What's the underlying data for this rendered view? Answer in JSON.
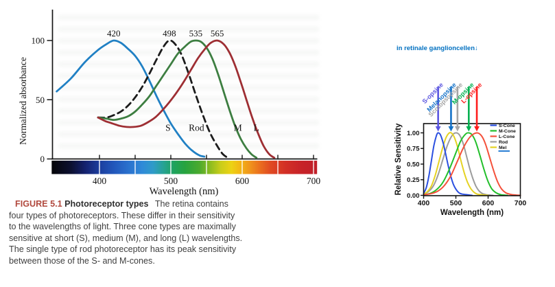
{
  "left_figure": {
    "caption": {
      "label": "FIGURE 5.1",
      "label_color": "#b1493e",
      "title": "Photoreceptor types",
      "body": "The retina contains four types of photoreceptors. These differ in their sensitivity to the wavelengths of light. Three cone types are maximally sensitive at short (S), medium (M), and long (L) wavelengths. The single type of rod photoreceptor has its peak sensitivity between those of the S- and M-cones."
    }
  },
  "right_figure": {
    "note": "in retinale ganglioncellen↓",
    "note_color": "#0070c0"
  },
  "chart_data": [
    {
      "type": "line",
      "title": "",
      "xlabel": "Wavelength (nm)",
      "ylabel": "Normalized absorbance",
      "xlim": [
        333,
        705
      ],
      "ylim": [
        0,
        105
      ],
      "xticks": [
        "400",
        "500",
        "600",
        "700"
      ],
      "xtick_nm": [
        400,
        500,
        600,
        700
      ],
      "yticks": [
        "0",
        "50",
        "100"
      ],
      "ytick_vals": [
        0,
        50,
        100
      ],
      "grid": false,
      "series": [
        {
          "name": "S",
          "color": "#2080c4",
          "dash": "none",
          "peak_nm": 420,
          "peak_label": "420",
          "points": [
            [
              340,
              57
            ],
            [
              360,
              68
            ],
            [
              380,
              82
            ],
            [
              398,
              92
            ],
            [
              410,
              97
            ],
            [
              420,
              100
            ],
            [
              430,
              98
            ],
            [
              440,
              93
            ],
            [
              450,
              87
            ],
            [
              460,
              78
            ],
            [
              470,
              66
            ],
            [
              480,
              53
            ],
            [
              490,
              41
            ],
            [
              500,
              30
            ],
            [
              510,
              21
            ],
            [
              520,
              13
            ],
            [
              530,
              7
            ],
            [
              540,
              3
            ],
            [
              547,
              2
            ]
          ]
        },
        {
          "name": "Rod",
          "color": "#1c1c1c",
          "dash": "9 6",
          "peak_nm": 498,
          "peak_label": "498",
          "points": [
            [
              398,
              35
            ],
            [
              410,
              35
            ],
            [
              420,
              37
            ],
            [
              430,
              40
            ],
            [
              440,
              45
            ],
            [
              450,
              52
            ],
            [
              460,
              61
            ],
            [
              470,
              72
            ],
            [
              480,
              84
            ],
            [
              490,
              95
            ],
            [
              498,
              100
            ],
            [
              506,
              97
            ],
            [
              515,
              88
            ],
            [
              525,
              72
            ],
            [
              535,
              54
            ],
            [
              545,
              37
            ],
            [
              555,
              22
            ],
            [
              565,
              11
            ],
            [
              573,
              4
            ],
            [
              580,
              1
            ]
          ]
        },
        {
          "name": "M",
          "color": "#3d7e41",
          "dash": "none",
          "peak_nm": 535,
          "peak_label": "535",
          "points": [
            [
              398,
              35
            ],
            [
              410,
              34
            ],
            [
              420,
              33
            ],
            [
              430,
              34
            ],
            [
              440,
              36
            ],
            [
              450,
              40
            ],
            [
              460,
              46
            ],
            [
              470,
              53
            ],
            [
              480,
              62
            ],
            [
              490,
              71
            ],
            [
              500,
              80
            ],
            [
              510,
              89
            ],
            [
              520,
              95
            ],
            [
              528,
              99
            ],
            [
              535,
              100
            ],
            [
              542,
              99
            ],
            [
              550,
              94
            ],
            [
              558,
              85
            ],
            [
              566,
              72
            ],
            [
              575,
              55
            ],
            [
              583,
              40
            ],
            [
              590,
              28
            ],
            [
              598,
              17
            ],
            [
              606,
              9
            ],
            [
              613,
              4
            ],
            [
              620,
              1
            ]
          ]
        },
        {
          "name": "L",
          "color": "#9e2e33",
          "dash": "none",
          "peak_nm": 565,
          "peak_label": "565",
          "points": [
            [
              398,
              35
            ],
            [
              408,
              32
            ],
            [
              418,
              30
            ],
            [
              428,
              28
            ],
            [
              438,
              27
            ],
            [
              448,
              27
            ],
            [
              458,
              28
            ],
            [
              468,
              31
            ],
            [
              478,
              35
            ],
            [
              488,
              41
            ],
            [
              498,
              48
            ],
            [
              508,
              56
            ],
            [
              518,
              65
            ],
            [
              528,
              75
            ],
            [
              538,
              85
            ],
            [
              548,
              93
            ],
            [
              556,
              98
            ],
            [
              565,
              100
            ],
            [
              574,
              97
            ],
            [
              582,
              90
            ],
            [
              590,
              79
            ],
            [
              598,
              65
            ],
            [
              606,
              50
            ],
            [
              614,
              35
            ],
            [
              622,
              22
            ],
            [
              630,
              11
            ],
            [
              638,
              4
            ],
            [
              645,
              1
            ]
          ]
        }
      ],
      "curve_labels": [
        {
          "text": "S",
          "nm": 496,
          "value": 26
        },
        {
          "text": "Rod",
          "nm": 536,
          "value": 26
        },
        {
          "text": "M",
          "nm": 594,
          "value": 26
        },
        {
          "text": "L",
          "nm": 620,
          "value": 26
        }
      ],
      "spectrum_bar": {
        "start_nm": 333,
        "end_nm": 705,
        "separator_nm": [
          400,
          450,
          500,
          550,
          600,
          650,
          700
        ],
        "stops": [
          {
            "nm": 333,
            "color": "#050508"
          },
          {
            "nm": 360,
            "color": "#0c1030"
          },
          {
            "nm": 380,
            "color": "#14216e"
          },
          {
            "nm": 400,
            "color": "#1c3e9e"
          },
          {
            "nm": 420,
            "color": "#2257bb"
          },
          {
            "nm": 440,
            "color": "#2a70cd"
          },
          {
            "nm": 460,
            "color": "#2f8ad8"
          },
          {
            "nm": 475,
            "color": "#2f9bc8"
          },
          {
            "nm": 490,
            "color": "#27a392"
          },
          {
            "nm": 505,
            "color": "#1fa35c"
          },
          {
            "nm": 520,
            "color": "#27a33e"
          },
          {
            "nm": 540,
            "color": "#4aaa2e"
          },
          {
            "nm": 555,
            "color": "#8cbc20"
          },
          {
            "nm": 570,
            "color": "#c9cd1a"
          },
          {
            "nm": 585,
            "color": "#ecd214"
          },
          {
            "nm": 595,
            "color": "#f2bc14"
          },
          {
            "nm": 610,
            "color": "#f0961c"
          },
          {
            "nm": 625,
            "color": "#ea6e1e"
          },
          {
            "nm": 640,
            "color": "#e04a22"
          },
          {
            "nm": 660,
            "color": "#d33026"
          },
          {
            "nm": 680,
            "color": "#c82428"
          },
          {
            "nm": 705,
            "color": "#c01f2a"
          }
        ]
      }
    },
    {
      "type": "line",
      "title": "",
      "xlabel": "Wavelength (nm)",
      "ylabel": "Relative Sensitivity",
      "xlim": [
        400,
        700
      ],
      "ylim": [
        0,
        1.15
      ],
      "xticks": [
        "400",
        "500",
        "600",
        "700"
      ],
      "xtick_nm": [
        400,
        500,
        600,
        700
      ],
      "yticks": [
        "0.00",
        "0.25",
        "0.50",
        "0.75",
        "1.00"
      ],
      "ytick_vals": [
        0,
        0.25,
        0.5,
        0.75,
        1.0
      ],
      "grid": false,
      "legend_position": "upper right",
      "legend": [
        {
          "label": "S-Cone",
          "color": "#2a4fe0"
        },
        {
          "label": "M-Cone",
          "color": "#22bf2b"
        },
        {
          "label": "L-Cone",
          "color": "#f4503a"
        },
        {
          "label": "Rod",
          "color": "#9c9c9c"
        },
        {
          "label": "Mel",
          "color": "#e5d222",
          "underline_color": "#2a7fd4"
        }
      ],
      "series": [
        {
          "name": "Rod",
          "color": "#9c9c9c",
          "peak_nm": 505,
          "points": [
            [
              400,
              0.02
            ],
            [
              415,
              0.06
            ],
            [
              430,
              0.15
            ],
            [
              445,
              0.33
            ],
            [
              460,
              0.58
            ],
            [
              475,
              0.82
            ],
            [
              490,
              0.97
            ],
            [
              502,
              1.0
            ],
            [
              512,
              0.96
            ],
            [
              522,
              0.84
            ],
            [
              532,
              0.65
            ],
            [
              542,
              0.45
            ],
            [
              552,
              0.28
            ],
            [
              562,
              0.15
            ],
            [
              572,
              0.07
            ],
            [
              582,
              0.03
            ],
            [
              595,
              0.01
            ],
            [
              615,
              0.0
            ]
          ]
        },
        {
          "name": "Mel",
          "color": "#e5d222",
          "peak_nm": 485,
          "points": [
            [
              400,
              0.02
            ],
            [
              412,
              0.06
            ],
            [
              424,
              0.15
            ],
            [
              436,
              0.32
            ],
            [
              448,
              0.55
            ],
            [
              460,
              0.78
            ],
            [
              470,
              0.93
            ],
            [
              480,
              1.0
            ],
            [
              488,
              0.99
            ],
            [
              496,
              0.92
            ],
            [
              506,
              0.76
            ],
            [
              516,
              0.55
            ],
            [
              526,
              0.36
            ],
            [
              536,
              0.21
            ],
            [
              546,
              0.11
            ],
            [
              556,
              0.05
            ],
            [
              566,
              0.02
            ],
            [
              580,
              0.01
            ],
            [
              600,
              0.0
            ]
          ]
        },
        {
          "name": "S-Cone",
          "color": "#2a4fe0",
          "peak_nm": 445,
          "points": [
            [
              400,
              0.03
            ],
            [
              408,
              0.12
            ],
            [
              416,
              0.3
            ],
            [
              424,
              0.55
            ],
            [
              432,
              0.8
            ],
            [
              440,
              0.96
            ],
            [
              445,
              1.0
            ],
            [
              452,
              0.97
            ],
            [
              460,
              0.85
            ],
            [
              468,
              0.67
            ],
            [
              476,
              0.48
            ],
            [
              484,
              0.31
            ],
            [
              492,
              0.18
            ],
            [
              500,
              0.1
            ],
            [
              510,
              0.04
            ],
            [
              520,
              0.02
            ],
            [
              535,
              0.01
            ],
            [
              550,
              0.0
            ]
          ]
        },
        {
          "name": "M-Cone",
          "color": "#22bf2b",
          "peak_nm": 540,
          "points": [
            [
              400,
              0.01
            ],
            [
              420,
              0.03
            ],
            [
              440,
              0.09
            ],
            [
              460,
              0.21
            ],
            [
              480,
              0.42
            ],
            [
              500,
              0.68
            ],
            [
              515,
              0.87
            ],
            [
              530,
              0.98
            ],
            [
              540,
              1.0
            ],
            [
              550,
              0.97
            ],
            [
              562,
              0.85
            ],
            [
              575,
              0.63
            ],
            [
              588,
              0.4
            ],
            [
              600,
              0.22
            ],
            [
              612,
              0.1
            ],
            [
              625,
              0.04
            ],
            [
              640,
              0.01
            ],
            [
              660,
              0.0
            ]
          ]
        },
        {
          "name": "L-Cone",
          "color": "#f4503a",
          "peak_nm": 565,
          "points": [
            [
              400,
              0.01
            ],
            [
              425,
              0.03
            ],
            [
              445,
              0.07
            ],
            [
              465,
              0.16
            ],
            [
              485,
              0.32
            ],
            [
              505,
              0.55
            ],
            [
              525,
              0.78
            ],
            [
              545,
              0.94
            ],
            [
              565,
              1.0
            ],
            [
              580,
              0.95
            ],
            [
              592,
              0.82
            ],
            [
              605,
              0.6
            ],
            [
              618,
              0.38
            ],
            [
              630,
              0.21
            ],
            [
              642,
              0.1
            ],
            [
              655,
              0.04
            ],
            [
              670,
              0.015
            ],
            [
              685,
              0.005
            ],
            [
              700,
              0.0
            ]
          ]
        }
      ],
      "annotations": [
        {
          "label": "S-opsine",
          "nm": 445,
          "color": "#5a55e0"
        },
        {
          "label": "Melanopsine",
          "nm": 485,
          "color": "#1472c8"
        },
        {
          "label": "Scotopsopsine",
          "nm": 505,
          "color": "#a5a5a5"
        },
        {
          "label": "M-opsine",
          "nm": 540,
          "color": "#00b050"
        },
        {
          "label": "L-opsine",
          "nm": 565,
          "color": "#ff1c1c"
        }
      ]
    }
  ]
}
